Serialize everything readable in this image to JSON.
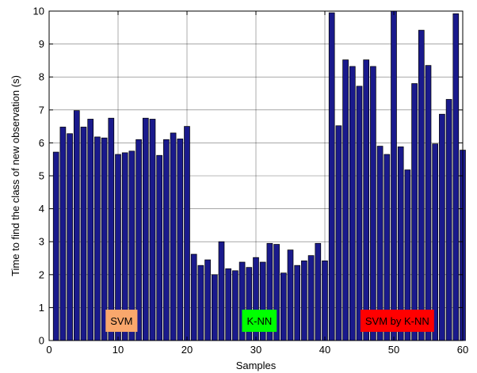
{
  "chart_data": {
    "type": "bar",
    "xlabel": "Samples",
    "ylabel": "Time to find the class of new observation (s)",
    "xlim": [
      0,
      60
    ],
    "ylim": [
      0,
      10
    ],
    "xticks": [
      0,
      10,
      20,
      30,
      40,
      50,
      60
    ],
    "yticks": [
      0,
      1,
      2,
      3,
      4,
      5,
      6,
      7,
      8,
      9,
      10
    ],
    "grid": true,
    "bar_color": "#1a1a8c",
    "x": [
      1,
      2,
      3,
      4,
      5,
      6,
      7,
      8,
      9,
      10,
      11,
      12,
      13,
      14,
      15,
      16,
      17,
      18,
      19,
      20,
      21,
      22,
      23,
      24,
      25,
      26,
      27,
      28,
      29,
      30,
      31,
      32,
      33,
      34,
      35,
      36,
      37,
      38,
      39,
      40,
      41,
      42,
      43,
      44,
      45,
      46,
      47,
      48,
      49,
      50,
      51,
      52,
      53,
      54,
      55,
      56,
      57,
      58,
      59,
      60
    ],
    "values": [
      5.72,
      6.48,
      6.28,
      6.98,
      6.48,
      6.72,
      6.18,
      6.15,
      6.75,
      5.65,
      5.7,
      5.75,
      6.1,
      6.75,
      6.72,
      5.62,
      6.1,
      6.3,
      6.12,
      6.5,
      2.62,
      2.28,
      2.45,
      2.0,
      3.0,
      2.18,
      2.12,
      2.38,
      2.22,
      2.52,
      2.38,
      2.95,
      2.92,
      2.05,
      2.75,
      2.28,
      2.42,
      2.58,
      2.95,
      2.42,
      9.95,
      6.52,
      8.52,
      8.32,
      7.72,
      8.52,
      8.32,
      5.9,
      5.65,
      10.0,
      5.88,
      5.18,
      7.8,
      9.42,
      8.35,
      5.97,
      6.87,
      7.32,
      9.92,
      5.78
    ],
    "annotations": [
      {
        "text": "SVM",
        "x": 10.5,
        "y": 0.6,
        "bg": "#f9a76c"
      },
      {
        "text": "K-NN",
        "x": 30.5,
        "y": 0.6,
        "bg": "#00ff00"
      },
      {
        "text": "SVM by K-NN",
        "x": 50.5,
        "y": 0.6,
        "bg": "#ff0000"
      }
    ]
  }
}
